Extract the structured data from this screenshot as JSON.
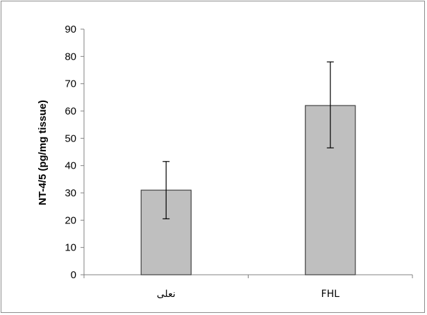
{
  "chart_data": {
    "type": "bar",
    "title": "",
    "xlabel": "",
    "ylabel": "NT-4/5  (pg/mg tissue)",
    "categories": [
      "نعلی",
      "FHL"
    ],
    "values": [
      31,
      62
    ],
    "error_low": [
      20.5,
      46.5
    ],
    "error_high": [
      41.5,
      78
    ],
    "ylim": [
      0,
      90
    ],
    "yticks": [
      "0",
      "10",
      "20",
      "30",
      "40",
      "50",
      "60",
      "70",
      "80",
      "90"
    ],
    "grid": false,
    "legend": "none",
    "bar_color": "#bfbfbf",
    "bar_edge_color": "#404040",
    "axis_color": "#808080"
  }
}
